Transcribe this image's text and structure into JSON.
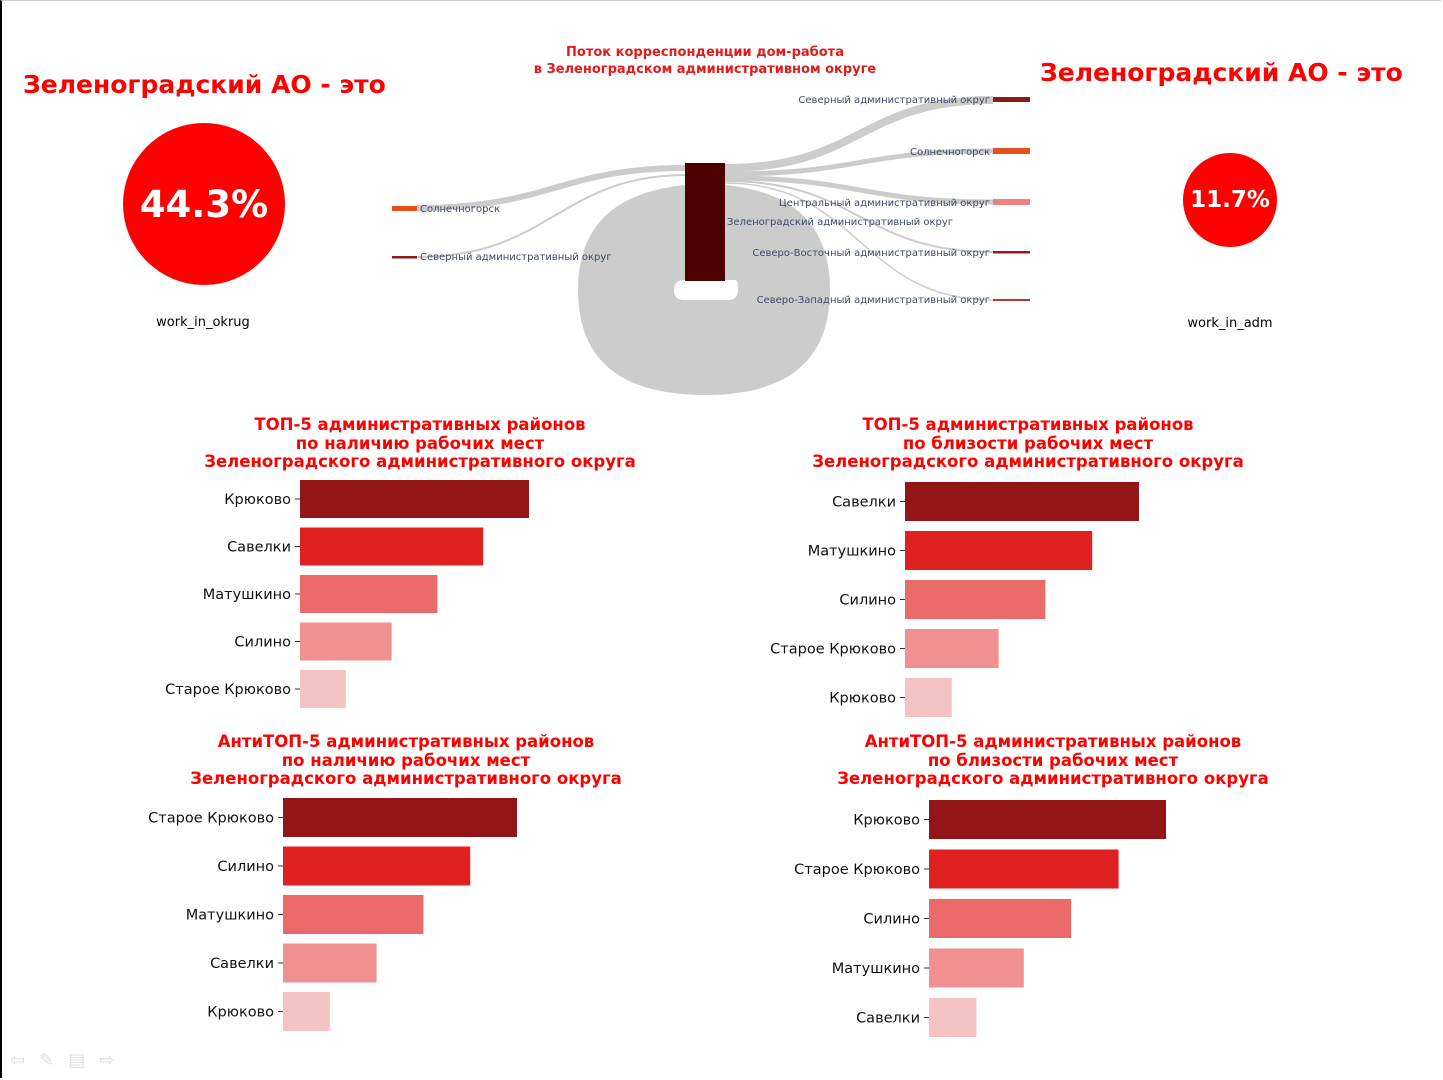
{
  "left_kpi": {
    "title": "Зеленоградский АО - это",
    "value": "44.3%",
    "label": "work_in_okrug"
  },
  "right_kpi": {
    "title": "Зеленоградский АО - это",
    "value": "11.7%",
    "label": "work_in_adm"
  },
  "sankey": {
    "title_line1": "Поток корреспонденции дом-работа",
    "title_line2": "в Зеленоградском административном округе",
    "center_label": "Зеленоградский административный округ",
    "left_nodes": [
      "Солнечногорск",
      "Северный административный округ"
    ],
    "right_nodes": [
      "Северный административный округ",
      "Солнечногорск",
      "Центральный административный округ",
      "Северо-Восточный административный округ",
      "Северо-Западный административный округ"
    ],
    "colors": {
      "center": "#4d0000",
      "link": "#cccccc",
      "orange": "#e8501a",
      "dark": "#8b1a1a",
      "pink": "#f08080",
      "red": "#c0392b"
    }
  },
  "chart_data": [
    {
      "type": "bar",
      "orientation": "horizontal",
      "title": [
        "ТОП-5 административных районов",
        "по наличию рабочих мест",
        "Зеленоградского административного округа"
      ],
      "categories": [
        "Крюково",
        "Савелки",
        "Матушкино",
        "Силино",
        "Старое Крюково"
      ],
      "values": [
        5,
        4,
        3,
        2,
        1
      ],
      "colors": [
        "#931518",
        "#e02121",
        "#ea6a6a",
        "#f09090",
        "#f5c3c3"
      ]
    },
    {
      "type": "bar",
      "orientation": "horizontal",
      "title": [
        "ТОП-5 административных районов",
        "по близости рабочих мест",
        "Зеленоградского административного округа"
      ],
      "categories": [
        "Савелки",
        "Матушкино",
        "Силино",
        "Старое Крюково",
        "Крюково"
      ],
      "values": [
        5,
        4,
        3,
        2,
        1
      ],
      "colors": [
        "#931518",
        "#e02121",
        "#ea6a6a",
        "#f09090",
        "#f5c3c3"
      ]
    },
    {
      "type": "bar",
      "orientation": "horizontal",
      "title": [
        "АнтиТОП-5 административных районов",
        "по наличию рабочих мест",
        "Зеленоградского административного округа"
      ],
      "categories": [
        "Старое Крюково",
        "Силино",
        "Матушкино",
        "Савелки",
        "Крюково"
      ],
      "values": [
        5,
        4,
        3,
        2,
        1
      ],
      "colors": [
        "#931518",
        "#e02121",
        "#ea6a6a",
        "#f09090",
        "#f5c3c3"
      ]
    },
    {
      "type": "bar",
      "orientation": "horizontal",
      "title": [
        "АнтиТОП-5 административных районов",
        "по близости рабочих мест",
        "Зеленоградского административного округа"
      ],
      "categories": [
        "Крюково",
        "Старое Крюково",
        "Силино",
        "Матушкино",
        "Савелки"
      ],
      "values": [
        5,
        4,
        3,
        2,
        1
      ],
      "colors": [
        "#931518",
        "#e02121",
        "#ea6a6a",
        "#f09090",
        "#f5c3c3"
      ]
    }
  ],
  "nav_icons": [
    "arrow-left-icon",
    "pen-icon",
    "menu-icon",
    "arrow-right-icon"
  ]
}
